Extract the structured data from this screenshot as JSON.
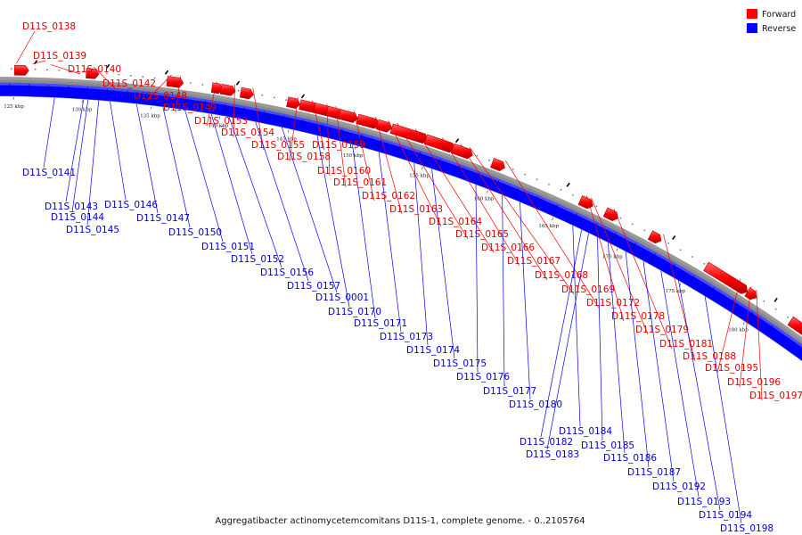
{
  "caption": "Aggregatibacter actinomycetemcomitans D11S-1, complete genome. - 0..2105764",
  "legend": {
    "forward": {
      "label": "Forward",
      "color": "#ff0000"
    },
    "reverse": {
      "label": "Reverse",
      "color": "#0000ff"
    }
  },
  "ticks": [
    "125 kbp",
    "130 kbp",
    "135 kbp",
    "140 kbp",
    "145 kbp",
    "150 kbp",
    "155 kbp",
    "160 kbp",
    "165 kbp",
    "170 kbp",
    "175 kbp",
    "180 kbp"
  ],
  "forward_genes": [
    "D11S_0138",
    "D11S_0139",
    "D11S_0140",
    "D11S_0142",
    "D11S_0148",
    "D11S_0149",
    "D11S_0153",
    "D11S_0154",
    "D11S_0155",
    "D11S_0158",
    "D11S_0159",
    "D11S_0160",
    "D11S_0161",
    "D11S_0162",
    "D11S_0163",
    "D11S_0164",
    "D11S_0165",
    "D11S_0166",
    "D11S_0167",
    "D11S_0168",
    "D11S_0169",
    "D11S_0172",
    "D11S_0178",
    "D11S_0179",
    "D11S_0181",
    "D11S_0188",
    "D11S_0195",
    "D11S_0196",
    "D11S_0197"
  ],
  "reverse_genes": [
    "D11S_0141",
    "D11S_0143",
    "D11S_0144",
    "D11S_0145",
    "D11S_0146",
    "D11S_0147",
    "D11S_0150",
    "D11S_0151",
    "D11S_0152",
    "D11S_0156",
    "D11S_0157",
    "D11S_0001",
    "D11S_0170",
    "D11S_0171",
    "D11S_0173",
    "D11S_0174",
    "D11S_0175",
    "D11S_0176",
    "D11S_0177",
    "D11S_0180",
    "D11S_0184",
    "D11S_0182",
    "D11S_0183",
    "D11S_0185",
    "D11S_0186",
    "D11S_0187",
    "D11S_0192",
    "D11S_0193",
    "D11S_0194",
    "D11S_0198"
  ]
}
